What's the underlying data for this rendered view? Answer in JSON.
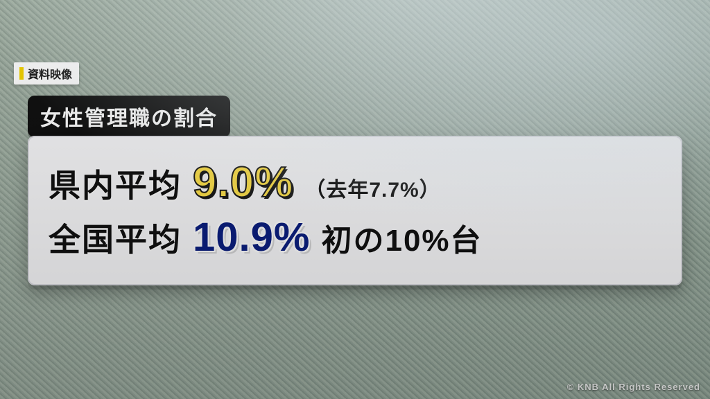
{
  "source_badge": {
    "label": "資料映像",
    "bar_color": "#f5d400",
    "bg": "#ffffff",
    "text_color": "#1a1a1a"
  },
  "title_chip": {
    "text": "女性管理職の割合",
    "bg": "#111111",
    "color": "#ffffff"
  },
  "panel": {
    "bg": "#f8f8fa",
    "row1": {
      "label": "県内平均",
      "value_text": "9.0%",
      "value_color": "#ffe24a",
      "value_stroke": "#1a1a1a",
      "paren_text": "（去年7.7%）"
    },
    "row2": {
      "label": "全国平均",
      "value_text": "10.9%",
      "value_color": "#0b1f80",
      "tail_text": "初の10%台"
    }
  },
  "copyright": "© KNB All Rights Reserved"
}
